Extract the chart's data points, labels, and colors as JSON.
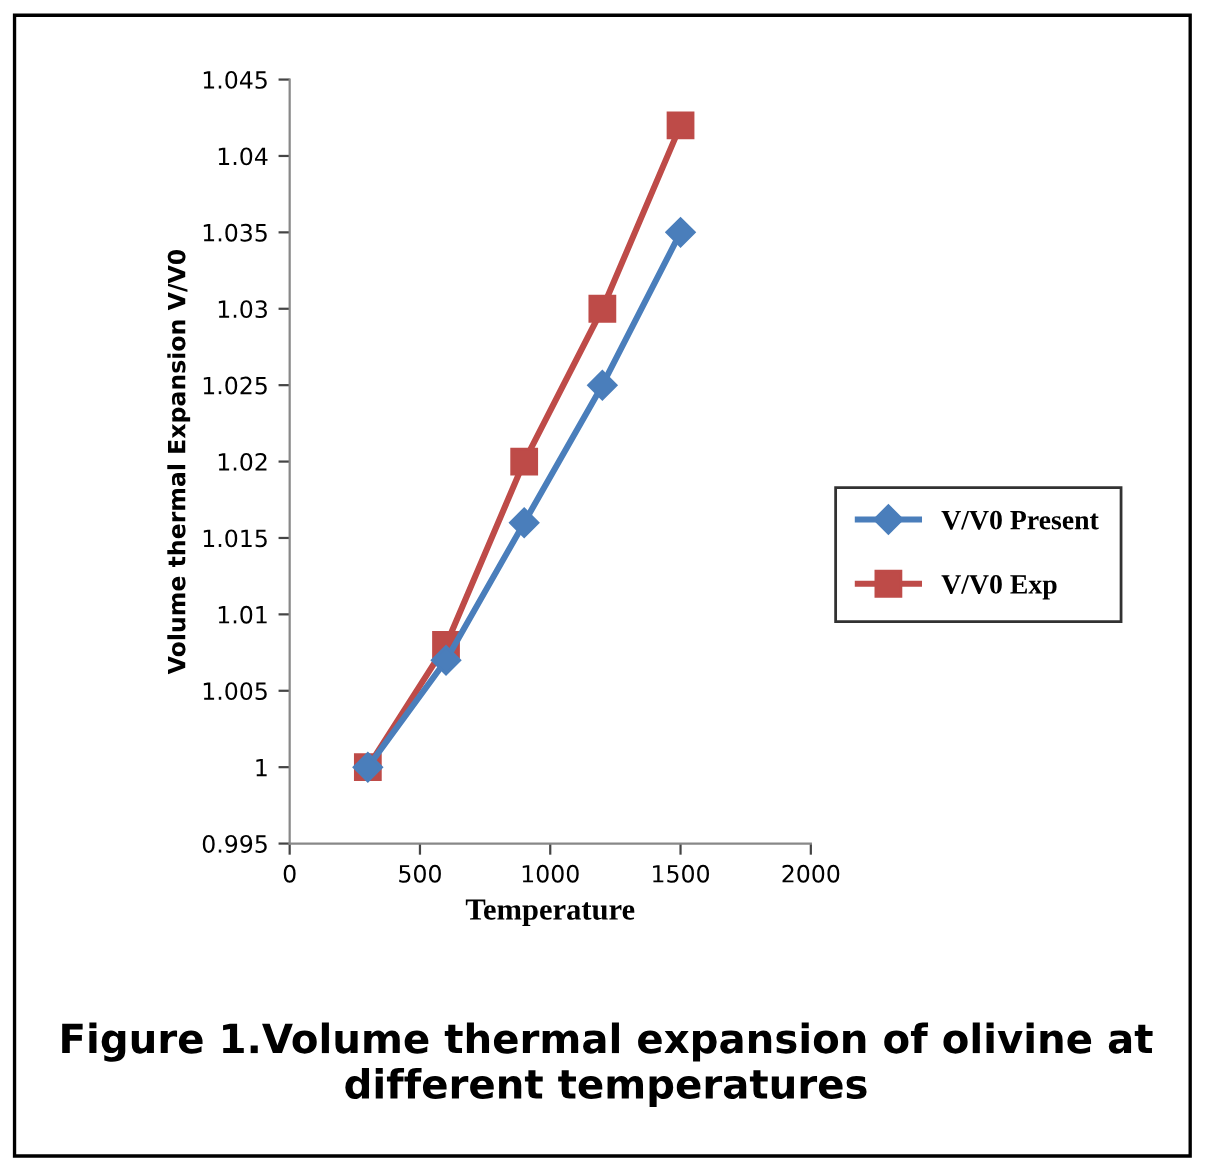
{
  "chart_data": {
    "type": "line",
    "xlabel": "Temperature",
    "ylabel": "Volume thermal Expansion V/V0",
    "x": [
      300,
      600,
      900,
      1200,
      1500
    ],
    "series": [
      {
        "name": "V/V0 Present",
        "color": "#4a7ebb",
        "marker": "diamond",
        "values": [
          1.0,
          1.007,
          1.016,
          1.025,
          1.035
        ]
      },
      {
        "name": "V/V0 Exp",
        "color": "#be4b48",
        "marker": "square",
        "values": [
          1.0,
          1.008,
          1.02,
          1.03,
          1.042
        ]
      }
    ],
    "xlim": [
      0,
      2000
    ],
    "xticks": [
      0,
      500,
      1000,
      1500,
      2000
    ],
    "ylim": [
      0.995,
      1.045
    ],
    "yticks": [
      {
        "value": 0.995,
        "label": "0.995"
      },
      {
        "value": 1,
        "label": "1"
      },
      {
        "value": 1.005,
        "label": "1.005"
      },
      {
        "value": 1.01,
        "label": "1.01"
      },
      {
        "value": 1.015,
        "label": "1.015"
      },
      {
        "value": 1.02,
        "label": "1.02"
      },
      {
        "value": 1.025,
        "label": "1.025"
      },
      {
        "value": 1.03,
        "label": "1.03"
      },
      {
        "value": 1.035,
        "label": "1.035"
      },
      {
        "value": 1.04,
        "label": "1.04"
      },
      {
        "value": 1.045,
        "label": "1.045"
      }
    ],
    "grid": false,
    "legend": "right",
    "line_style": "solid",
    "annotations": [
      "Figure 1.Volume thermal expansion of olivine at different temperatures"
    ]
  }
}
